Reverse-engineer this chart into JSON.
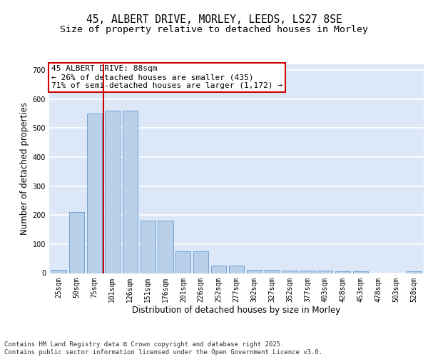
{
  "title_line1": "45, ALBERT DRIVE, MORLEY, LEEDS, LS27 8SE",
  "title_line2": "Size of property relative to detached houses in Morley",
  "xlabel": "Distribution of detached houses by size in Morley",
  "ylabel": "Number of detached properties",
  "categories": [
    "25sqm",
    "50sqm",
    "75sqm",
    "101sqm",
    "126sqm",
    "151sqm",
    "176sqm",
    "201sqm",
    "226sqm",
    "252sqm",
    "277sqm",
    "302sqm",
    "327sqm",
    "352sqm",
    "377sqm",
    "403sqm",
    "428sqm",
    "453sqm",
    "478sqm",
    "503sqm",
    "528sqm"
  ],
  "values": [
    12,
    210,
    550,
    560,
    560,
    180,
    180,
    75,
    75,
    27,
    27,
    10,
    10,
    8,
    8,
    8,
    5,
    5,
    0,
    0,
    5
  ],
  "bar_color": "#b8d0ea",
  "bar_edge_color": "#6699cc",
  "background_color": "#dce8f8",
  "grid_color": "#ffffff",
  "vline_color": "#cc0000",
  "vline_x": 2.5,
  "annotation_text": "45 ALBERT DRIVE: 88sqm\n← 26% of detached houses are smaller (435)\n71% of semi-detached houses are larger (1,172) →",
  "annotation_box_facecolor": "#ffffff",
  "annotation_box_edgecolor": "#cc0000",
  "ylim": [
    0,
    720
  ],
  "yticks": [
    0,
    100,
    200,
    300,
    400,
    500,
    600,
    700
  ],
  "footnote": "Contains HM Land Registry data © Crown copyright and database right 2025.\nContains public sector information licensed under the Open Government Licence v3.0.",
  "title_fontsize": 10.5,
  "subtitle_fontsize": 9.5,
  "axis_label_fontsize": 8.5,
  "tick_fontsize": 7,
  "annotation_fontsize": 8,
  "footnote_fontsize": 6.5
}
